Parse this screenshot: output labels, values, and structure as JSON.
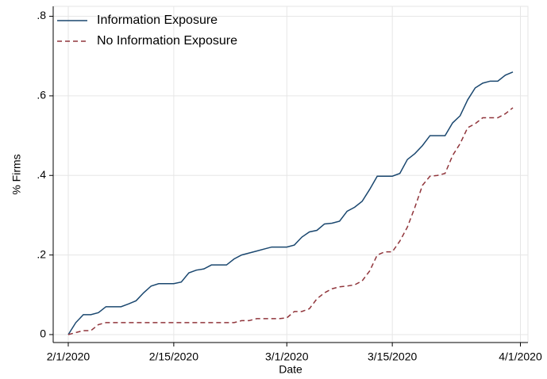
{
  "chart_data": {
    "type": "line",
    "ylabel": "% Firms",
    "xlabel": "Date",
    "x": [
      "2020-02-01",
      "2020-02-02",
      "2020-02-03",
      "2020-02-04",
      "2020-02-05",
      "2020-02-06",
      "2020-02-07",
      "2020-02-08",
      "2020-02-09",
      "2020-02-10",
      "2020-02-11",
      "2020-02-12",
      "2020-02-13",
      "2020-02-14",
      "2020-02-15",
      "2020-02-16",
      "2020-02-17",
      "2020-02-18",
      "2020-02-19",
      "2020-02-20",
      "2020-02-21",
      "2020-02-22",
      "2020-02-23",
      "2020-02-24",
      "2020-02-25",
      "2020-02-26",
      "2020-02-27",
      "2020-02-28",
      "2020-02-29",
      "2020-03-01",
      "2020-03-02",
      "2020-03-03",
      "2020-03-04",
      "2020-03-05",
      "2020-03-06",
      "2020-03-07",
      "2020-03-08",
      "2020-03-09",
      "2020-03-10",
      "2020-03-11",
      "2020-03-12",
      "2020-03-13",
      "2020-03-14",
      "2020-03-15",
      "2020-03-16",
      "2020-03-17",
      "2020-03-18",
      "2020-03-19",
      "2020-03-20",
      "2020-03-21",
      "2020-03-22",
      "2020-03-23",
      "2020-03-24",
      "2020-03-25",
      "2020-03-26",
      "2020-03-27",
      "2020-03-28",
      "2020-03-29",
      "2020-03-30",
      "2020-03-31"
    ],
    "series": [
      {
        "name": "Information Exposure",
        "color": "#1a476f",
        "dash": false,
        "values": [
          0,
          0.03,
          0.05,
          0.05,
          0.055,
          0.07,
          0.07,
          0.07,
          0.077,
          0.085,
          0.105,
          0.122,
          0.128,
          0.128,
          0.128,
          0.132,
          0.155,
          0.162,
          0.165,
          0.175,
          0.175,
          0.175,
          0.19,
          0.2,
          0.205,
          0.21,
          0.215,
          0.22,
          0.22,
          0.22,
          0.225,
          0.245,
          0.258,
          0.262,
          0.278,
          0.28,
          0.285,
          0.31,
          0.32,
          0.335,
          0.365,
          0.398,
          0.398,
          0.398,
          0.405,
          0.44,
          0.455,
          0.475,
          0.5,
          0.5,
          0.5,
          0.532,
          0.55,
          0.59,
          0.62,
          0.632,
          0.637,
          0.637,
          0.652,
          0.66
        ]
      },
      {
        "name": "No Information Exposure",
        "color": "#90353b",
        "dash": true,
        "values": [
          0,
          0.005,
          0.01,
          0.01,
          0.025,
          0.03,
          0.03,
          0.03,
          0.03,
          0.03,
          0.03,
          0.03,
          0.03,
          0.03,
          0.03,
          0.03,
          0.03,
          0.03,
          0.03,
          0.03,
          0.03,
          0.03,
          0.03,
          0.035,
          0.035,
          0.04,
          0.04,
          0.04,
          0.04,
          0.042,
          0.058,
          0.058,
          0.065,
          0.09,
          0.105,
          0.115,
          0.12,
          0.122,
          0.125,
          0.135,
          0.16,
          0.2,
          0.208,
          0.208,
          0.235,
          0.27,
          0.32,
          0.375,
          0.398,
          0.4,
          0.405,
          0.45,
          0.48,
          0.52,
          0.53,
          0.545,
          0.545,
          0.545,
          0.555,
          0.57
        ]
      }
    ],
    "xlim": [
      "2020-01-30",
      "2020-04-02"
    ],
    "xticks": [
      {
        "value": "2020-02-01",
        "label": "2/1/2020"
      },
      {
        "value": "2020-02-15",
        "label": "2/15/2020"
      },
      {
        "value": "2020-03-01",
        "label": "3/1/2020"
      },
      {
        "value": "2020-03-15",
        "label": "3/15/2020"
      },
      {
        "value": "2020-04-01",
        "label": "4/1/2020"
      }
    ],
    "ylim": [
      -0.02,
      0.825
    ],
    "yticks": [
      0,
      {
        "value": 0.2,
        "label": ".2"
      },
      {
        "value": 0.4,
        "label": ".4"
      },
      {
        "value": 0.6,
        "label": ".6"
      },
      {
        "value": 0.8,
        "label": ".8"
      }
    ],
    "grid": true,
    "legend": "top-left"
  }
}
